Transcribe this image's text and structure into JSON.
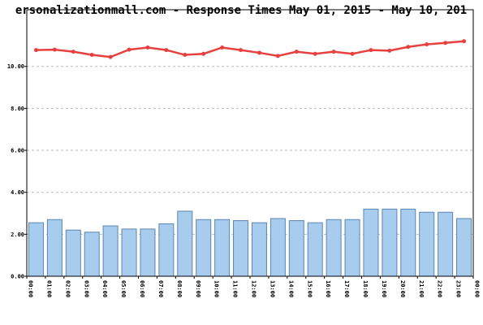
{
  "chart_data": {
    "type": "combo",
    "title": "ersonalizationmall.com - Response Times May 01, 2015 - May 10, 201",
    "x_labels": [
      "00:00",
      "01:00",
      "02:00",
      "03:00",
      "04:00",
      "05:00",
      "06:00",
      "07:00",
      "08:00",
      "09:00",
      "10:00",
      "11:00",
      "12:00",
      "13:00",
      "14:00",
      "15:00",
      "16:00",
      "17:00",
      "18:00",
      "19:00",
      "20:00",
      "21:00",
      "22:00",
      "23:00",
      "00:00"
    ],
    "ylim": [
      0,
      12.7
    ],
    "yticks": [
      {
        "value": 0,
        "label": "0.00"
      },
      {
        "value": 2,
        "label": "2.00"
      },
      {
        "value": 4,
        "label": "4.00"
      },
      {
        "value": 6,
        "label": "6.00"
      },
      {
        "value": 8,
        "label": "8.00"
      },
      {
        "value": 10,
        "label": "10.00"
      }
    ],
    "grid": true,
    "series": [
      {
        "type": "bar",
        "color": "#a8ccee",
        "values": [
          2.55,
          2.7,
          2.2,
          2.1,
          2.4,
          2.25,
          2.25,
          2.5,
          3.1,
          2.7,
          2.7,
          2.65,
          2.55,
          2.75,
          2.65,
          2.55,
          2.7,
          2.7,
          3.2,
          3.2,
          3.2,
          3.05,
          3.05,
          2.75
        ]
      },
      {
        "type": "line",
        "color": "#e8403f",
        "values": [
          10.78,
          10.8,
          10.7,
          10.55,
          10.45,
          10.8,
          10.9,
          10.78,
          10.55,
          10.6,
          10.9,
          10.78,
          10.65,
          10.5,
          10.7,
          10.6,
          10.7,
          10.6,
          10.78,
          10.75,
          10.93,
          11.05,
          11.12,
          11.2
        ]
      }
    ]
  }
}
